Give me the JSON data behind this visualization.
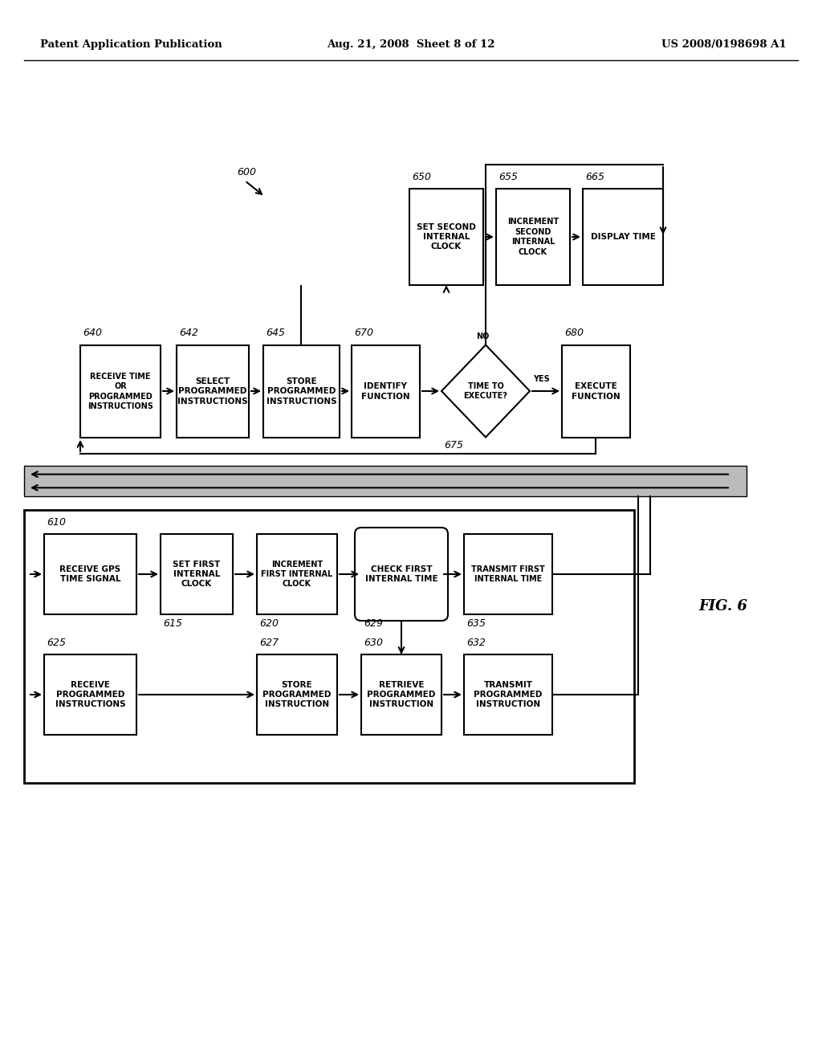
{
  "bg_color": "#ffffff",
  "header_left": "Patent Application Publication",
  "header_mid": "Aug. 21, 2008  Sheet 8 of 12",
  "header_right": "US 2008/0198698 A1",
  "fig_label": "FIG. 6"
}
